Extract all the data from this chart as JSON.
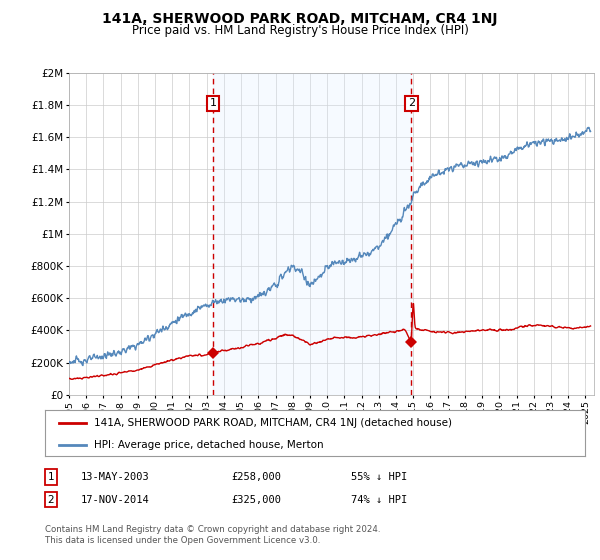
{
  "title": "141A, SHERWOOD PARK ROAD, MITCHAM, CR4 1NJ",
  "subtitle": "Price paid vs. HM Land Registry's House Price Index (HPI)",
  "title_fontsize": 10,
  "subtitle_fontsize": 8.5,
  "ylabel_ticks": [
    "£0",
    "£200K",
    "£400K",
    "£600K",
    "£800K",
    "£1M",
    "£1.2M",
    "£1.4M",
    "£1.6M",
    "£1.8M",
    "£2M"
  ],
  "ytick_values": [
    0,
    200000,
    400000,
    600000,
    800000,
    1000000,
    1200000,
    1400000,
    1600000,
    1800000,
    2000000
  ],
  "ylim": [
    0,
    2000000
  ],
  "xlim_start": 1995.0,
  "xlim_end": 2025.5,
  "sale1_x": 2003.36,
  "sale1_y": 258000,
  "sale1_label": "1",
  "sale2_x": 2014.88,
  "sale2_y": 325000,
  "sale2_label": "2",
  "legend_line1": "141A, SHERWOOD PARK ROAD, MITCHAM, CR4 1NJ (detached house)",
  "legend_line2": "HPI: Average price, detached house, Merton",
  "note1_num": "1",
  "note1_date": "13-MAY-2003",
  "note1_price": "£258,000",
  "note1_pct": "55% ↓ HPI",
  "note2_num": "2",
  "note2_date": "17-NOV-2014",
  "note2_price": "£325,000",
  "note2_pct": "74% ↓ HPI",
  "footer": "Contains HM Land Registry data © Crown copyright and database right 2024.\nThis data is licensed under the Open Government Licence v3.0.",
  "red_color": "#cc0000",
  "blue_color": "#5588bb",
  "shade_color": "#ddeeff",
  "grid_color": "#cccccc",
  "background_color": "#ffffff"
}
